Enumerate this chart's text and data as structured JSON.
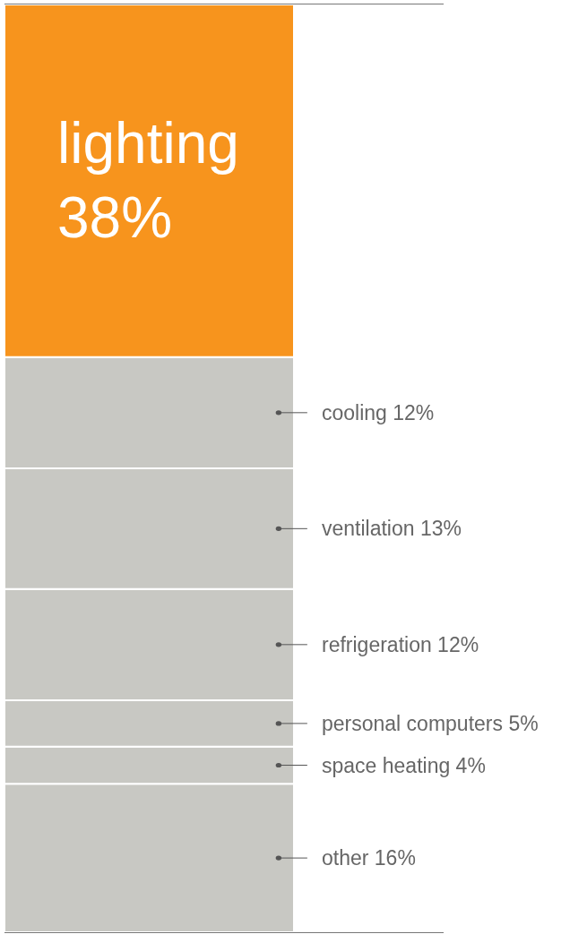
{
  "chart_data": {
    "type": "bar",
    "stacked": true,
    "categories": [
      null
    ],
    "ylim": [
      0,
      100
    ],
    "legend": false,
    "series": [
      {
        "name": "other",
        "color": "#c8c8c3",
        "values": [
          16
        ],
        "value_labels": [
          "16%"
        ]
      },
      {
        "name": "space heating",
        "color": "#c8c8c3",
        "values": [
          4
        ],
        "value_labels": [
          "4%"
        ]
      },
      {
        "name": "personal computers",
        "color": "#c8c8c3",
        "values": [
          5
        ],
        "value_labels": [
          "5%"
        ]
      },
      {
        "name": "refrigeration",
        "color": "#c8c8c3",
        "values": [
          12
        ],
        "value_labels": [
          "12%"
        ]
      },
      {
        "name": "ventilation",
        "color": "#c8c8c3",
        "values": [
          13
        ],
        "value_labels": [
          "13%"
        ]
      },
      {
        "name": "cooling",
        "color": "#c8c8c3",
        "values": [
          12
        ],
        "value_labels": [
          "12%"
        ]
      },
      {
        "name": "lighting",
        "color": "#f7941d",
        "values": [
          38
        ],
        "value_labels": [
          "38%"
        ]
      }
    ]
  }
}
